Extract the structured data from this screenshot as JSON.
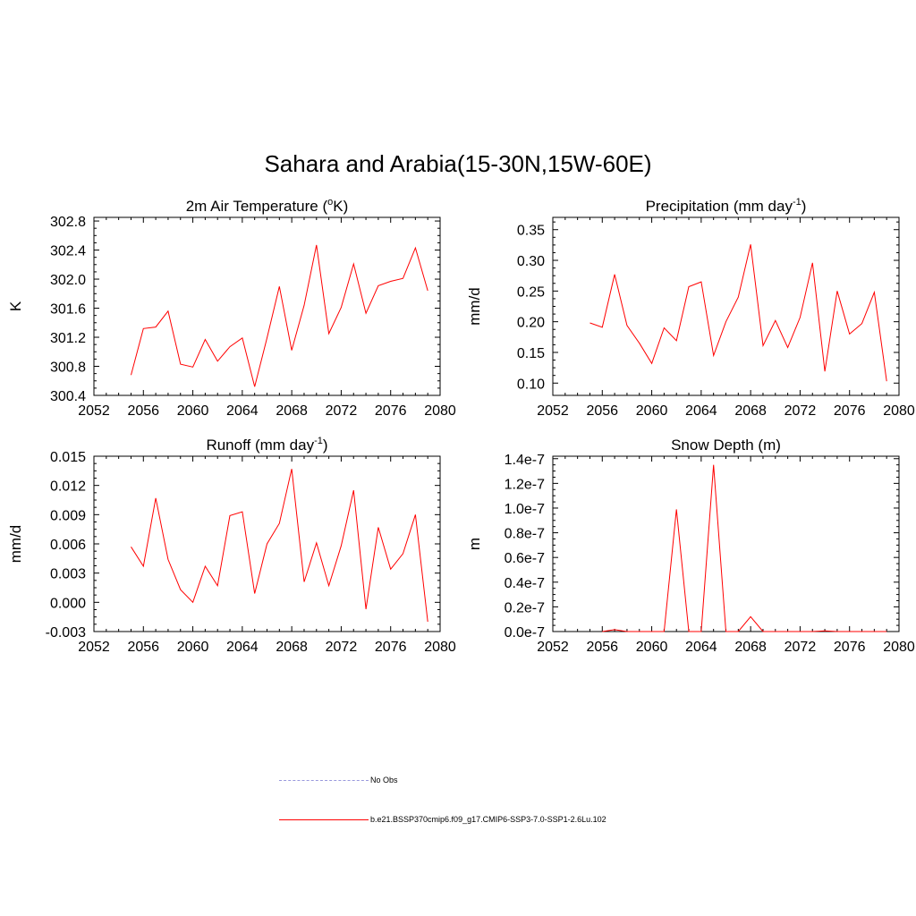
{
  "figure": {
    "title": "Sahara and Arabia(15-30N,15W-60E)"
  },
  "chart_data": [
    {
      "id": "temp",
      "type": "line",
      "title_base": "2m Air Temperature (",
      "title_sup": "o",
      "title_tail": "K)",
      "ylabel": "K",
      "xlim": [
        2052,
        2080
      ],
      "x_ticks": [
        "2052",
        "2056",
        "2060",
        "2064",
        "2068",
        "2072",
        "2076",
        "2080"
      ],
      "ylim": [
        300.4,
        302.85
      ],
      "y_ticks": [
        300.4,
        300.8,
        301.2,
        301.6,
        302.0,
        302.4,
        302.8
      ],
      "y_tick_labels": [
        "300.4",
        "300.8",
        "301.2",
        "301.6",
        "302.0",
        "302.4",
        "302.8"
      ],
      "series": [
        {
          "color": "#ff0000",
          "x": [
            2055,
            2056,
            2057,
            2058,
            2059,
            2060,
            2061,
            2062,
            2063,
            2064,
            2065,
            2066,
            2067,
            2068,
            2069,
            2070,
            2071,
            2072,
            2073,
            2074,
            2075,
            2076,
            2077,
            2078,
            2079
          ],
          "y": [
            300.68,
            301.32,
            301.34,
            301.56,
            300.83,
            300.79,
            301.17,
            300.87,
            301.07,
            301.19,
            300.52,
            301.19,
            301.9,
            301.02,
            301.64,
            302.47,
            301.25,
            301.61,
            302.21,
            301.53,
            301.91,
            301.97,
            302.01,
            302.43,
            301.84
          ]
        }
      ]
    },
    {
      "id": "precip",
      "type": "line",
      "title_base": "Precipitation (mm day",
      "title_sup": "-1",
      "title_tail": ")",
      "ylabel": "mm/d",
      "xlim": [
        2052,
        2080
      ],
      "x_ticks": [
        "2052",
        "2056",
        "2060",
        "2064",
        "2068",
        "2072",
        "2076",
        "2080"
      ],
      "ylim": [
        0.08,
        0.37
      ],
      "y_ticks": [
        0.1,
        0.15,
        0.2,
        0.25,
        0.3,
        0.35
      ],
      "y_tick_labels": [
        "0.10",
        "0.15",
        "0.20",
        "0.25",
        "0.30",
        "0.35"
      ],
      "series": [
        {
          "color": "#ff0000",
          "x": [
            2055,
            2056,
            2057,
            2058,
            2059,
            2060,
            2061,
            2062,
            2063,
            2064,
            2065,
            2066,
            2067,
            2068,
            2069,
            2070,
            2071,
            2072,
            2073,
            2074,
            2075,
            2076,
            2077,
            2078,
            2079
          ],
          "y": [
            0.198,
            0.191,
            0.277,
            0.194,
            0.165,
            0.132,
            0.19,
            0.169,
            0.257,
            0.265,
            0.145,
            0.2,
            0.24,
            0.326,
            0.161,
            0.202,
            0.158,
            0.207,
            0.296,
            0.119,
            0.25,
            0.18,
            0.197,
            0.248,
            0.103
          ]
        }
      ]
    },
    {
      "id": "runoff",
      "type": "line",
      "title_base": "Runoff (mm day",
      "title_sup": "-1",
      "title_tail": ")",
      "ylabel": "mm/d",
      "xlim": [
        2052,
        2080
      ],
      "x_ticks": [
        "2052",
        "2056",
        "2060",
        "2064",
        "2068",
        "2072",
        "2076",
        "2080"
      ],
      "ylim": [
        -0.003,
        0.015
      ],
      "y_ticks": [
        -0.003,
        0.0,
        0.003,
        0.006,
        0.009,
        0.012,
        0.015
      ],
      "y_tick_labels": [
        "-0.003",
        "0.000",
        "0.003",
        "0.006",
        "0.009",
        "0.012",
        "0.015"
      ],
      "series": [
        {
          "color": "#ff0000",
          "x": [
            2055,
            2056,
            2057,
            2058,
            2059,
            2060,
            2061,
            2062,
            2063,
            2064,
            2065,
            2066,
            2067,
            2068,
            2069,
            2070,
            2071,
            2072,
            2073,
            2074,
            2075,
            2076,
            2077,
            2078,
            2079
          ],
          "y": [
            0.0057,
            0.0037,
            0.0107,
            0.0044,
            0.0013,
            0.0,
            0.0037,
            0.0017,
            0.0089,
            0.0093,
            0.0009,
            0.006,
            0.0081,
            0.0137,
            0.0021,
            0.0061,
            0.0017,
            0.0058,
            0.0115,
            -0.0007,
            0.0077,
            0.0034,
            0.005,
            0.009,
            -0.002
          ]
        }
      ]
    },
    {
      "id": "snow",
      "type": "line",
      "title_base": "Snow Depth (m)",
      "title_sup": "",
      "title_tail": "",
      "ylabel": "m",
      "xlim": [
        2052,
        2080
      ],
      "x_ticks": [
        "2052",
        "2056",
        "2060",
        "2064",
        "2068",
        "2072",
        "2076",
        "2080"
      ],
      "ylim": [
        0,
        1.42e-07
      ],
      "y_ticks": [
        0,
        2e-08,
        4e-08,
        6e-08,
        8e-08,
        1e-07,
        1.2e-07,
        1.4e-07
      ],
      "y_tick_labels": [
        "0.0e-7",
        "0.2e-7",
        "0.4e-7",
        "0.6e-7",
        "0.8e-7",
        "1.0e-7",
        "1.2e-7",
        "1.4e-7"
      ],
      "series": [
        {
          "color": "#ff0000",
          "x": [
            2056,
            2057,
            2058,
            2059,
            2060,
            2061,
            2062,
            2063,
            2064,
            2065,
            2066,
            2067,
            2068,
            2069,
            2070,
            2071,
            2072,
            2073,
            2074,
            2075,
            2076,
            2077,
            2078,
            2079
          ],
          "y": [
            0,
            1.5e-09,
            0,
            0,
            0,
            0,
            9.9e-08,
            0,
            0,
            1.35e-07,
            0,
            0,
            1.2e-08,
            0,
            0,
            0,
            0,
            0,
            5e-10,
            0,
            0,
            0,
            0,
            0
          ]
        }
      ]
    }
  ],
  "legend": {
    "items": [
      {
        "label": "No Obs",
        "color": "#9999dd",
        "style": "dashed"
      },
      {
        "label": "b.e21.BSSP370cmip6.f09_g17.CMIP6-SSP3-7.0-SSP1-2.6Lu.102",
        "color": "#ff0000",
        "style": "solid"
      }
    ]
  }
}
